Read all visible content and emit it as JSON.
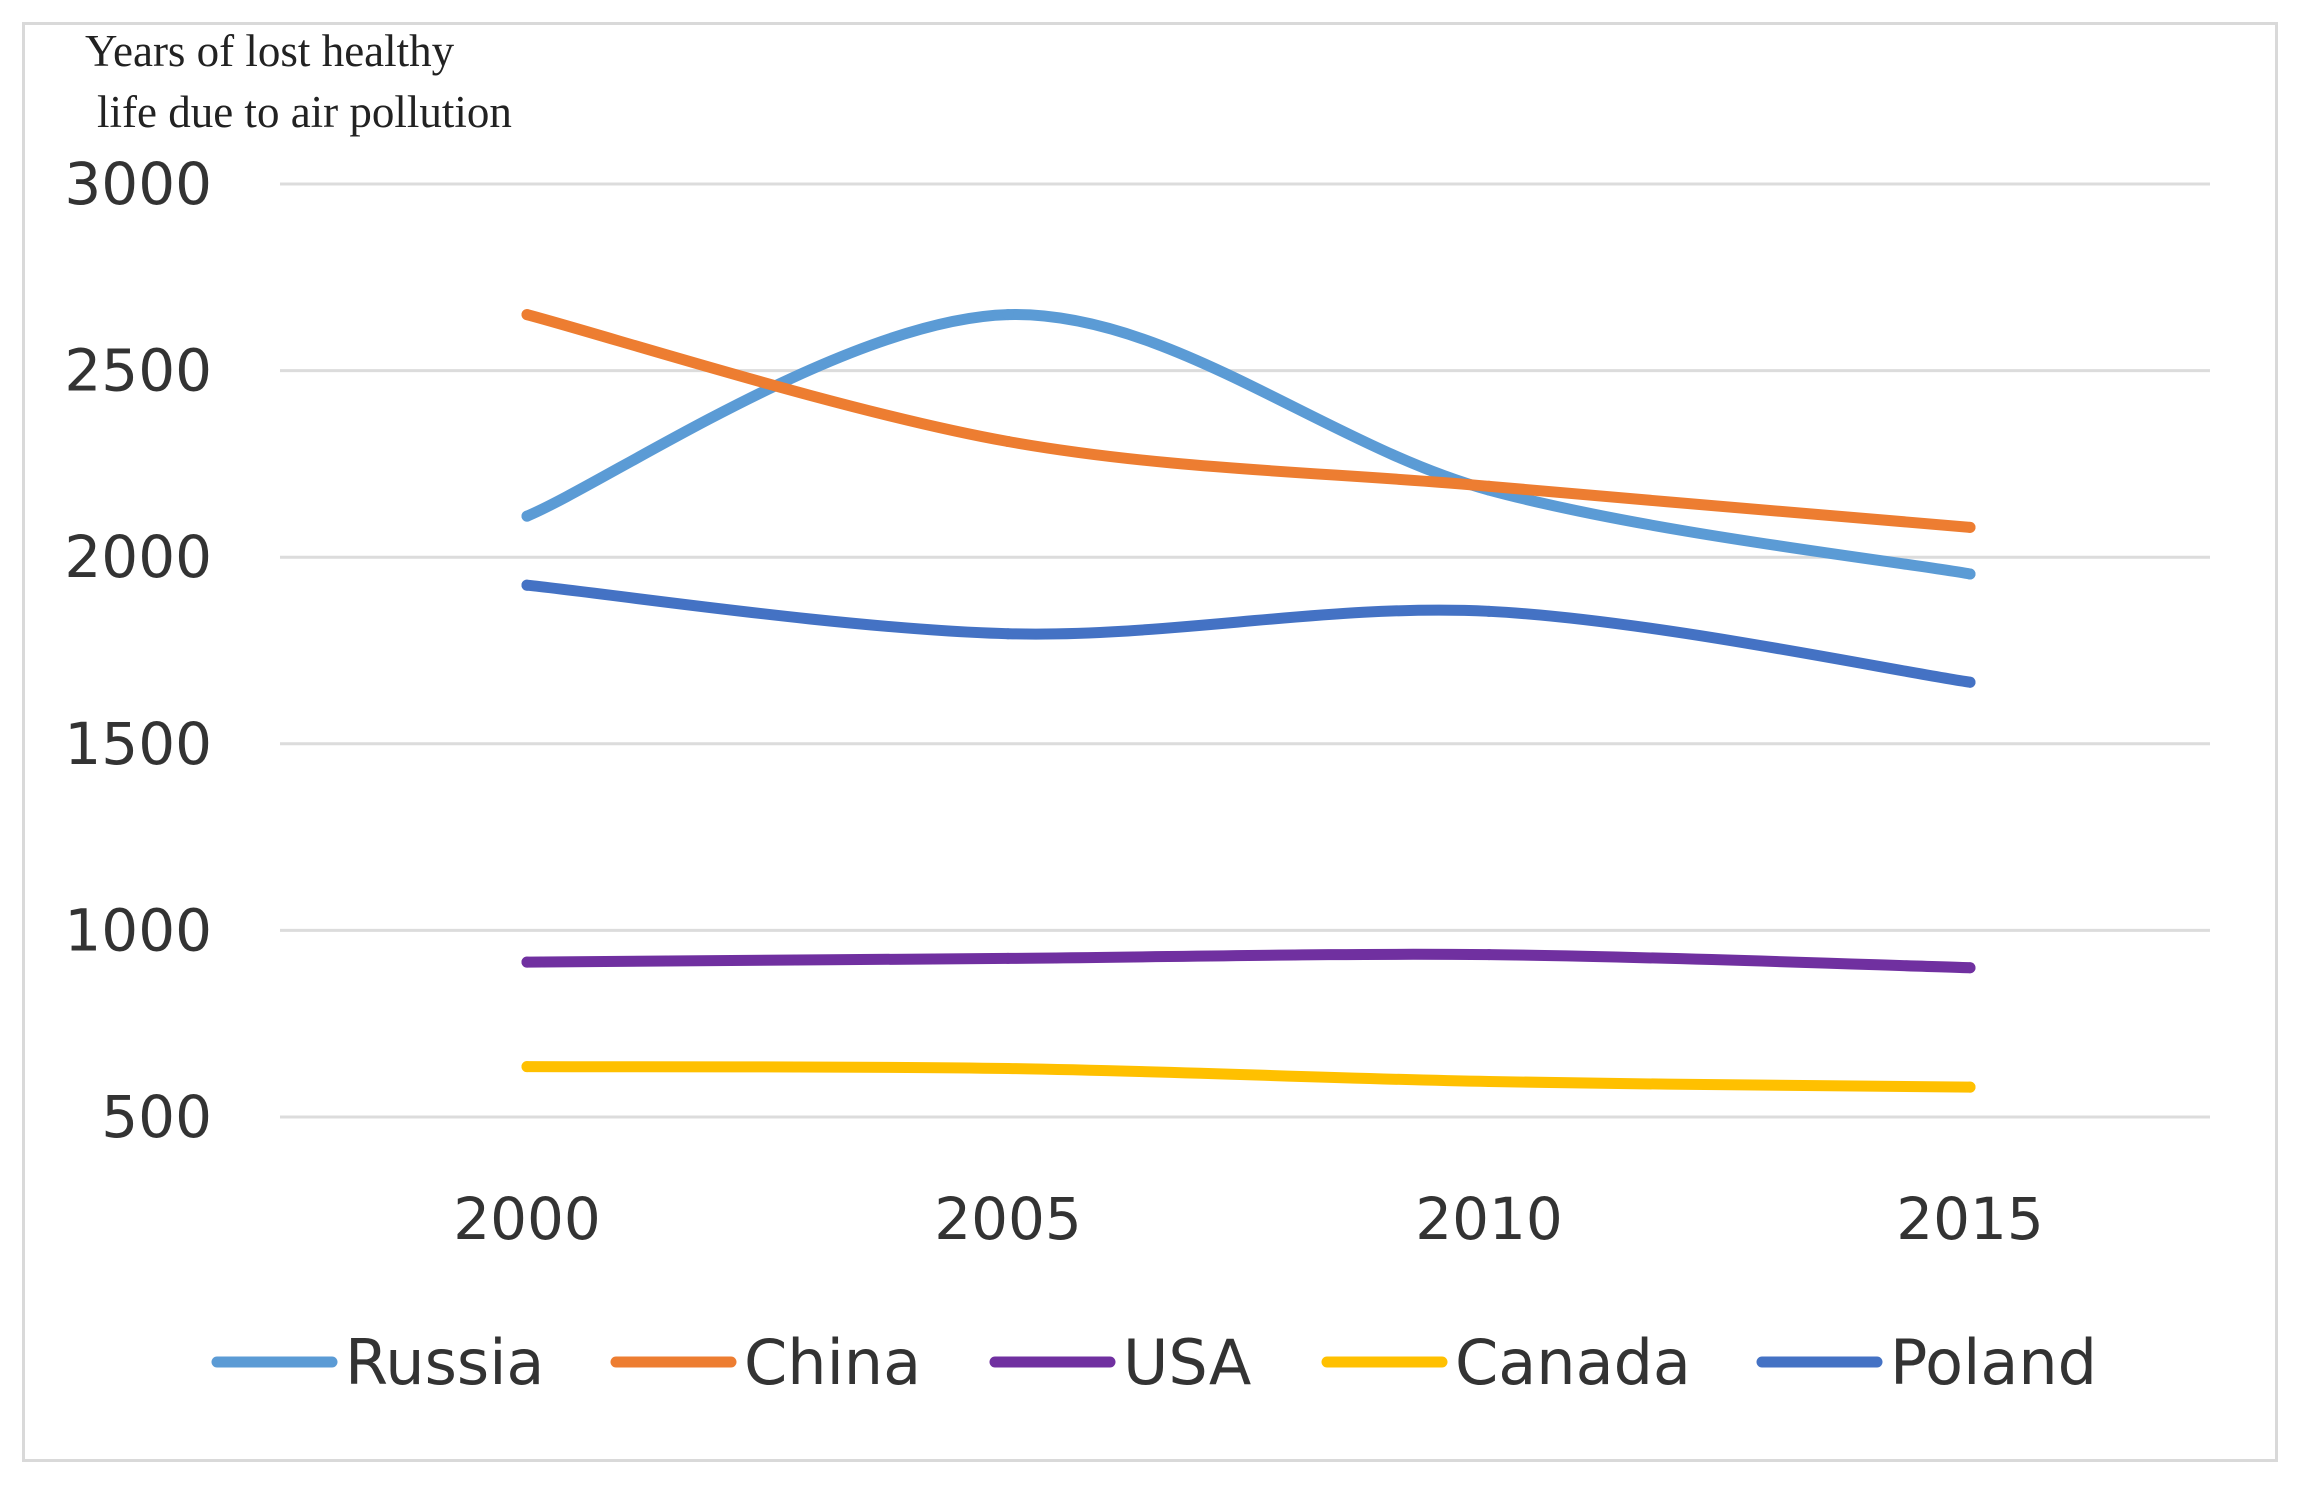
{
  "chart_data": {
    "type": "line",
    "ylabel_lines": [
      "Years  of  lost  healthy",
      "life due to air pollution"
    ],
    "x": [
      2000,
      2005,
      2010,
      2015
    ],
    "x_tick_labels": [
      "2000",
      "2005",
      "2010",
      "2015"
    ],
    "y_ticks": [
      500,
      1000,
      1500,
      2000,
      2500,
      3000
    ],
    "ylim": [
      500,
      3000
    ],
    "smooth": true,
    "grid": true,
    "legend_position": "bottom",
    "series": [
      {
        "name": "Russia",
        "color": "#5b9bd5",
        "values": [
          2110,
          2650,
          2180,
          1955
        ]
      },
      {
        "name": "China",
        "color": "#ed7d31",
        "values": [
          2650,
          2310,
          2190,
          2080
        ]
      },
      {
        "name": "USA",
        "color": "#7030a0",
        "values": [
          915,
          925,
          935,
          900
        ]
      },
      {
        "name": "Canada",
        "color": "#ffc000",
        "values": [
          635,
          630,
          595,
          580
        ]
      },
      {
        "name": "Poland",
        "color": "#4472c4",
        "values": [
          1925,
          1795,
          1855,
          1665
        ]
      }
    ]
  }
}
